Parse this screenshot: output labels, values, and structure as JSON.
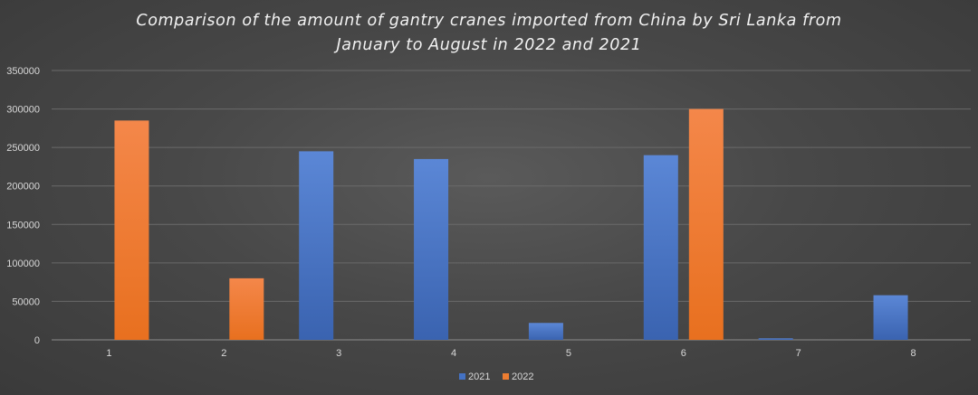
{
  "chart_data": {
    "type": "bar",
    "title_lines": [
      "Comparison of the amount of gantry cranes imported from China by Sri Lanka from",
      "January to August in 2022 and 2021"
    ],
    "categories": [
      "1",
      "2",
      "3",
      "4",
      "5",
      "6",
      "7",
      "8"
    ],
    "series": [
      {
        "name": "2021",
        "color": "#4472c4",
        "values": [
          0,
          0,
          245000,
          235000,
          22000,
          240000,
          2000,
          58000
        ]
      },
      {
        "name": "2022",
        "color": "#ed7d31",
        "values": [
          285000,
          80000,
          0,
          0,
          0,
          300000,
          0,
          0
        ]
      }
    ],
    "ylim": [
      0,
      350000
    ],
    "yticks": [
      "0",
      "50000",
      "100000",
      "150000",
      "200000",
      "250000",
      "300000",
      "350000"
    ],
    "grid": true,
    "legend_position": "bottom"
  }
}
